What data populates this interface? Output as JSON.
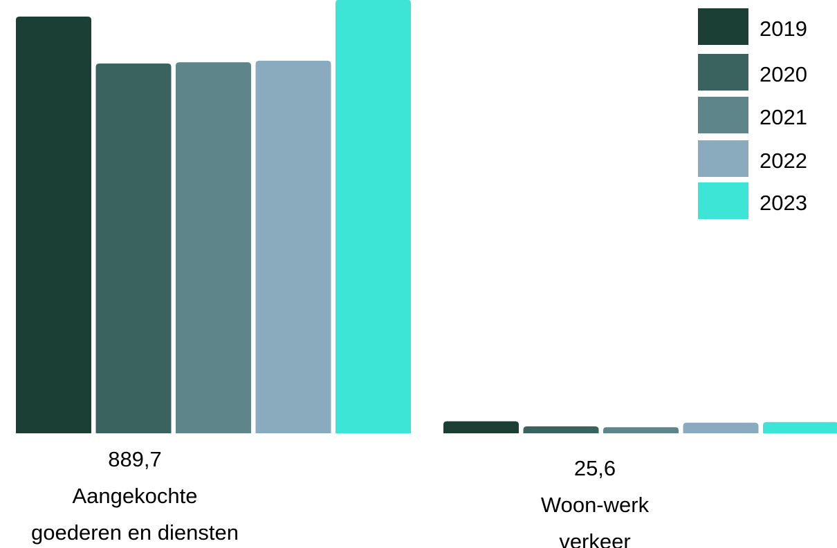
{
  "chart_data": {
    "type": "bar",
    "categories": [
      "Aangekochte goederen en diensten",
      "Woon-werk verkeer"
    ],
    "category_label_lines": [
      [
        "889,7",
        "Aangekochte",
        "goederen en diensten"
      ],
      [
        "25,6",
        "Woon-werk",
        "verkeer"
      ]
    ],
    "series": [
      {
        "name": "2019",
        "color": "#1c3f35",
        "values": [
          889.7,
          25.6
        ]
      },
      {
        "name": "2020",
        "color": "#3a635f",
        "values": [
          789.5,
          14.8
        ]
      },
      {
        "name": "2021",
        "color": "#5d858a",
        "values": [
          792.1,
          13.0
        ]
      },
      {
        "name": "2022",
        "color": "#8aabbe",
        "values": [
          795.4,
          22.7
        ]
      },
      {
        "name": "2023",
        "color": "#3ce5d6",
        "values": [
          925.6,
          23.9
        ]
      }
    ],
    "ylim": [
      0,
      889.7
    ],
    "grid": false,
    "legend_position": "top-right"
  }
}
